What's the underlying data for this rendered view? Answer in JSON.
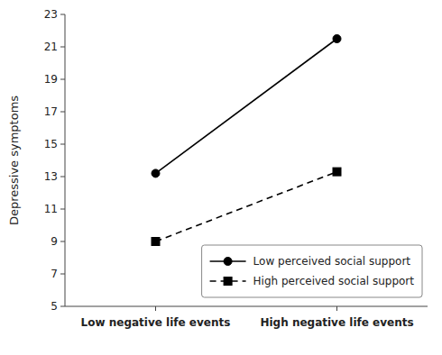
{
  "chart_data": {
    "type": "line",
    "categories": [
      "Low negative life events",
      "High negative life events"
    ],
    "series": [
      {
        "name": "Low perceived social support",
        "color": "#000000",
        "values": [
          13.2,
          21.5
        ],
        "marker": "circle",
        "line_style": "solid"
      },
      {
        "name": "High perceived social support",
        "color": "#000000",
        "values": [
          9.0,
          13.3
        ],
        "marker": "square",
        "line_style": "dashed"
      }
    ],
    "ylim": [
      5,
      23
    ],
    "yticks": [
      5,
      7,
      9,
      11,
      13,
      15,
      17,
      19,
      21,
      23
    ],
    "ylabel": "Depressive symptoms",
    "grid": false,
    "legend": "lower right"
  }
}
